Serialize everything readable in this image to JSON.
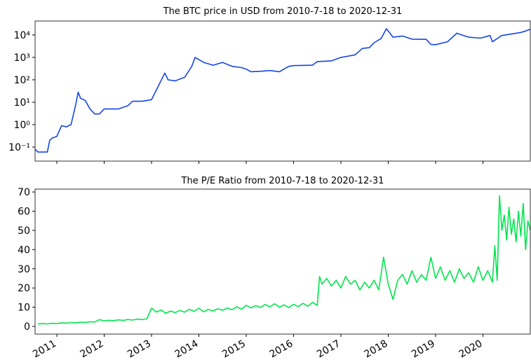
{
  "chart_data": [
    {
      "type": "line",
      "title": "The BTC price in USD from 2010-7-18 to 2020-12-31",
      "log_y": true,
      "xlim": [
        2010.54,
        2021.0
      ],
      "xticks": [
        2011,
        2012,
        2013,
        2014,
        2015,
        2016,
        2017,
        2018,
        2019,
        2020
      ],
      "ylim": [
        0.0237,
        42000
      ],
      "yticks": [
        {
          "value": 0.1,
          "label": "10⁻¹"
        },
        {
          "value": 1,
          "label": "10⁰"
        },
        {
          "value": 10,
          "label": "10¹"
        },
        {
          "value": 100,
          "label": "10²"
        },
        {
          "value": 1000,
          "label": "10³"
        },
        {
          "value": 10000,
          "label": "10⁴"
        }
      ],
      "color": "#1545e8",
      "x": [
        2010.54,
        2010.6,
        2010.8,
        2010.85,
        2010.9,
        2011.0,
        2011.1,
        2011.2,
        2011.3,
        2011.4,
        2011.45,
        2011.5,
        2011.6,
        2011.7,
        2011.8,
        2011.9,
        2012.0,
        2012.1,
        2012.3,
        2012.5,
        2012.6,
        2012.8,
        2013.0,
        2013.2,
        2013.28,
        2013.35,
        2013.5,
        2013.7,
        2013.85,
        2013.92,
        2014.0,
        2014.1,
        2014.3,
        2014.5,
        2014.7,
        2014.9,
        2015.0,
        2015.1,
        2015.3,
        2015.5,
        2015.7,
        2015.9,
        2016.0,
        2016.4,
        2016.5,
        2016.8,
        2017.0,
        2017.3,
        2017.45,
        2017.6,
        2017.7,
        2017.85,
        2017.96,
        2018.05,
        2018.1,
        2018.3,
        2018.5,
        2018.8,
        2018.9,
        2019.0,
        2019.25,
        2019.45,
        2019.55,
        2019.7,
        2019.95,
        2020.15,
        2020.2,
        2020.4,
        2020.6,
        2020.8,
        2020.9,
        2021.0
      ],
      "values": [
        0.08,
        0.06,
        0.06,
        0.2,
        0.25,
        0.3,
        0.9,
        0.8,
        1.0,
        8,
        28,
        15,
        12,
        5,
        3,
        3,
        5,
        5,
        5,
        7,
        11,
        11,
        13,
        90,
        200,
        100,
        90,
        130,
        400,
        1000,
        800,
        600,
        450,
        600,
        400,
        350,
        300,
        230,
        240,
        260,
        230,
        400,
        430,
        450,
        650,
        700,
        1000,
        1300,
        2500,
        2700,
        4500,
        7000,
        19000,
        11000,
        8000,
        9000,
        6500,
        6400,
        3800,
        3700,
        5000,
        12000,
        10000,
        8000,
        7200,
        9500,
        5000,
        9500,
        11000,
        13000,
        15000,
        18000
      ]
    },
    {
      "type": "line",
      "title": "The P/E Ratio from 2010-7-18 to 2020-12-31",
      "xlim": [
        2010.54,
        2021.0
      ],
      "xticks": [
        2011,
        2012,
        2013,
        2014,
        2015,
        2016,
        2017,
        2018,
        2019,
        2020
      ],
      "ylim": [
        -4,
        71.5
      ],
      "yticks": [
        0,
        10,
        20,
        30,
        40,
        50,
        60,
        70
      ],
      "color": "#00e64d",
      "x": [
        2010.6,
        2010.7,
        2010.8,
        2010.9,
        2011.0,
        2011.1,
        2011.2,
        2011.3,
        2011.4,
        2011.5,
        2011.6,
        2011.7,
        2011.8,
        2011.9,
        2012.0,
        2012.1,
        2012.2,
        2012.3,
        2012.4,
        2012.5,
        2012.6,
        2012.7,
        2012.8,
        2012.9,
        2013.0,
        2013.1,
        2013.2,
        2013.3,
        2013.4,
        2013.5,
        2013.6,
        2013.7,
        2013.8,
        2013.9,
        2014.0,
        2014.1,
        2014.2,
        2014.3,
        2014.4,
        2014.5,
        2014.6,
        2014.7,
        2014.8,
        2014.9,
        2015.0,
        2015.1,
        2015.2,
        2015.3,
        2015.4,
        2015.5,
        2015.6,
        2015.7,
        2015.8,
        2015.9,
        2016.0,
        2016.1,
        2016.2,
        2016.3,
        2016.4,
        2016.5,
        2016.55,
        2016.6,
        2016.7,
        2016.8,
        2016.9,
        2017.0,
        2017.1,
        2017.2,
        2017.3,
        2017.4,
        2017.5,
        2017.6,
        2017.7,
        2017.8,
        2017.9,
        2018.0,
        2018.1,
        2018.2,
        2018.3,
        2018.4,
        2018.5,
        2018.6,
        2018.7,
        2018.8,
        2018.9,
        2019.0,
        2019.1,
        2019.2,
        2019.3,
        2019.4,
        2019.5,
        2019.6,
        2019.7,
        2019.8,
        2019.9,
        2020.0,
        2020.1,
        2020.2,
        2020.25,
        2020.3,
        2020.35,
        2020.4,
        2020.45,
        2020.5,
        2020.55,
        2020.6,
        2020.65,
        2020.7,
        2020.75,
        2020.8,
        2020.85,
        2020.9,
        2020.95,
        2021.0
      ],
      "values": [
        1.2,
        1.5,
        1.3,
        1.6,
        1.5,
        1.8,
        1.7,
        2.0,
        1.9,
        2.2,
        2.1,
        2.4,
        2.3,
        3.5,
        2.9,
        3.2,
        3.0,
        3.4,
        3.1,
        3.6,
        3.3,
        3.8,
        3.5,
        4.0,
        9.5,
        7.5,
        8.5,
        6.8,
        8.0,
        7.2,
        8.3,
        7.4,
        8.9,
        7.8,
        9.5,
        7.6,
        8.8,
        8.0,
        9.2,
        8.4,
        9.6,
        8.7,
        10.2,
        9.0,
        11.0,
        9.6,
        10.8,
        9.9,
        11.4,
        10.2,
        11.8,
        10.0,
        11.2,
        9.8,
        11.5,
        10.3,
        12.0,
        10.5,
        12.5,
        11.0,
        26,
        22,
        25,
        21,
        24,
        20,
        26,
        22,
        24,
        19,
        23,
        20,
        24,
        19,
        36,
        22,
        14,
        24,
        27,
        22,
        29,
        23,
        27,
        24,
        36,
        25,
        31,
        24,
        29,
        23,
        30,
        25,
        28,
        23,
        31,
        24,
        29,
        23,
        42,
        24,
        68,
        50,
        58,
        45,
        62,
        48,
        56,
        44,
        60,
        47,
        64,
        40,
        55,
        50
      ]
    }
  ]
}
